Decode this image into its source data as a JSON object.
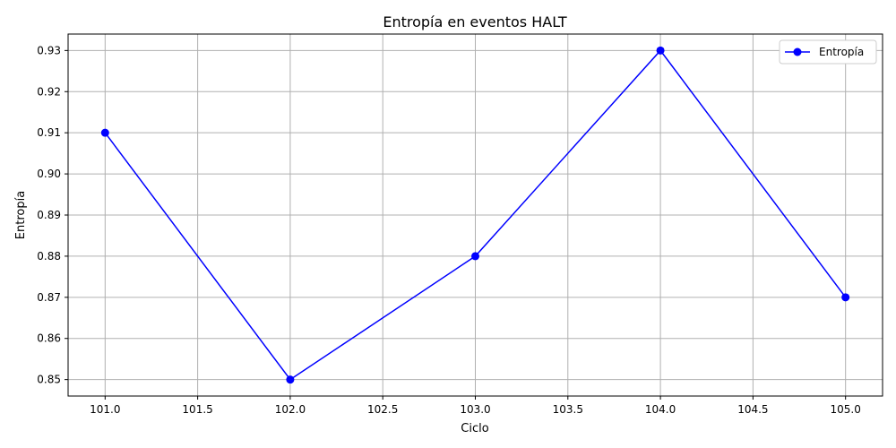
{
  "chart_data": {
    "type": "line",
    "title": "Entropía en eventos HALT",
    "xlabel": "Ciclo",
    "ylabel": "Entropía",
    "x": [
      101.0,
      102.0,
      103.0,
      104.0,
      105.0
    ],
    "series": [
      {
        "name": "Entropía",
        "values": [
          0.91,
          0.85,
          0.88,
          0.93,
          0.87
        ],
        "color": "#0000ff",
        "marker": "circle"
      }
    ],
    "xlim": [
      100.8,
      105.2
    ],
    "ylim": [
      0.846,
      0.934
    ],
    "xticks": [
      "101.0",
      "101.5",
      "102.0",
      "102.5",
      "103.0",
      "103.5",
      "104.0",
      "104.5",
      "105.0"
    ],
    "yticks": [
      "0.85",
      "0.86",
      "0.87",
      "0.88",
      "0.89",
      "0.90",
      "0.91",
      "0.92",
      "0.93"
    ],
    "grid": true,
    "legend_position": "top-right"
  }
}
